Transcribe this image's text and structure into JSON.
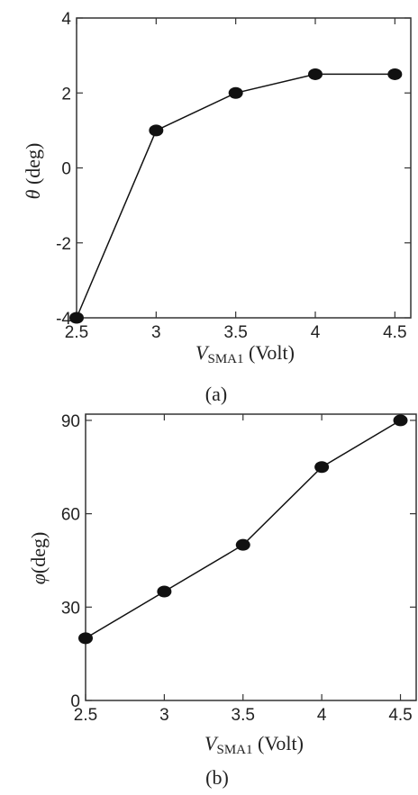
{
  "chart_data": [
    {
      "type": "line",
      "caption": "(a)",
      "ylabel_symbol": "θ",
      "ylabel_unit": " (deg)",
      "xlabel_symbol": "V",
      "xlabel_sub": "SMA1",
      "xlabel_unit": " (Volt)",
      "x": [
        2.5,
        3,
        3.5,
        4,
        4.5
      ],
      "values": [
        -4,
        1,
        2,
        2.5,
        2.5
      ],
      "xlim": [
        2.5,
        4.6
      ],
      "ylim": [
        -4,
        4
      ],
      "xticks": [
        "2.5",
        "3",
        "3.5",
        "4",
        "4.5"
      ],
      "yticks": [
        "4",
        "2",
        "0",
        "-2",
        "-4"
      ],
      "grid": false,
      "marker": "circle",
      "color": "#111111"
    },
    {
      "type": "line",
      "caption": "(b)",
      "ylabel_symbol": "φ",
      "ylabel_unit": "(deg)",
      "xlabel_symbol": "V",
      "xlabel_sub": "SMA1",
      "xlabel_unit": " (Volt)",
      "x": [
        2.5,
        3,
        3.5,
        4,
        4.5
      ],
      "values": [
        20,
        35,
        50,
        75,
        90
      ],
      "xlim": [
        2.5,
        4.6
      ],
      "ylim": [
        0,
        92
      ],
      "xticks": [
        "2.5",
        "3",
        "3.5",
        "4",
        "4.5"
      ],
      "yticks": [
        "90",
        "60",
        "30",
        "0"
      ],
      "grid": false,
      "marker": "circle",
      "color": "#111111"
    }
  ]
}
